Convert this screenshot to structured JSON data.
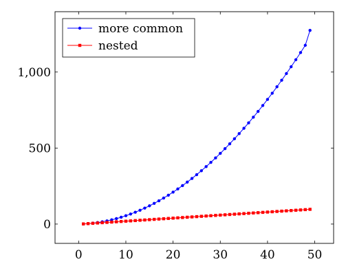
{
  "chart_data": {
    "type": "line",
    "title": "",
    "xlabel": "",
    "ylabel": "",
    "xlim": [
      -5,
      54
    ],
    "ylim": [
      -127,
      1397
    ],
    "xticks": [
      0,
      10,
      20,
      30,
      40,
      50
    ],
    "xtick_labels": [
      "0",
      "10",
      "20",
      "30",
      "40",
      "50"
    ],
    "yticks": [
      0,
      500,
      1000
    ],
    "ytick_labels": [
      "0",
      "500",
      "1,000"
    ],
    "grid": false,
    "legend_position": "top-left",
    "series": [
      {
        "name": "more common",
        "color": "#0000ff",
        "marker": "circle",
        "x": [
          1,
          2,
          3,
          4,
          5,
          6,
          7,
          8,
          9,
          10,
          11,
          12,
          13,
          14,
          15,
          16,
          17,
          18,
          19,
          20,
          21,
          22,
          23,
          24,
          25,
          26,
          27,
          28,
          29,
          30,
          31,
          32,
          33,
          34,
          35,
          36,
          37,
          38,
          39,
          40,
          41,
          42,
          43,
          44,
          45,
          46,
          47,
          48,
          49
        ],
        "values": [
          1,
          3,
          6,
          10,
          15,
          21,
          28,
          36,
          45,
          55,
          66,
          78,
          91,
          105,
          120,
          136,
          153,
          171,
          190,
          210,
          231,
          253,
          276,
          300,
          325,
          351,
          378,
          406,
          435,
          465,
          496,
          528,
          561,
          595,
          630,
          666,
          703,
          741,
          780,
          820,
          861,
          903,
          946,
          990,
          1035,
          1081,
          1128,
          1176,
          1274
        ]
      },
      {
        "name": "nested",
        "color": "#ff0000",
        "marker": "square",
        "x": [
          1,
          2,
          3,
          4,
          5,
          6,
          7,
          8,
          9,
          10,
          11,
          12,
          13,
          14,
          15,
          16,
          17,
          18,
          19,
          20,
          21,
          22,
          23,
          24,
          25,
          26,
          27,
          28,
          29,
          30,
          31,
          32,
          33,
          34,
          35,
          36,
          37,
          38,
          39,
          40,
          41,
          42,
          43,
          44,
          45,
          46,
          47,
          48,
          49
        ],
        "values": [
          1,
          3,
          5,
          7,
          9,
          11,
          13,
          15,
          17,
          19,
          21,
          23,
          25,
          27,
          29,
          31,
          33,
          35,
          37,
          39,
          41,
          43,
          45,
          47,
          49,
          51,
          53,
          55,
          57,
          59,
          61,
          63,
          65,
          67,
          69,
          71,
          73,
          75,
          77,
          79,
          81,
          83,
          85,
          87,
          89,
          91,
          93,
          95,
          97
        ]
      }
    ]
  }
}
